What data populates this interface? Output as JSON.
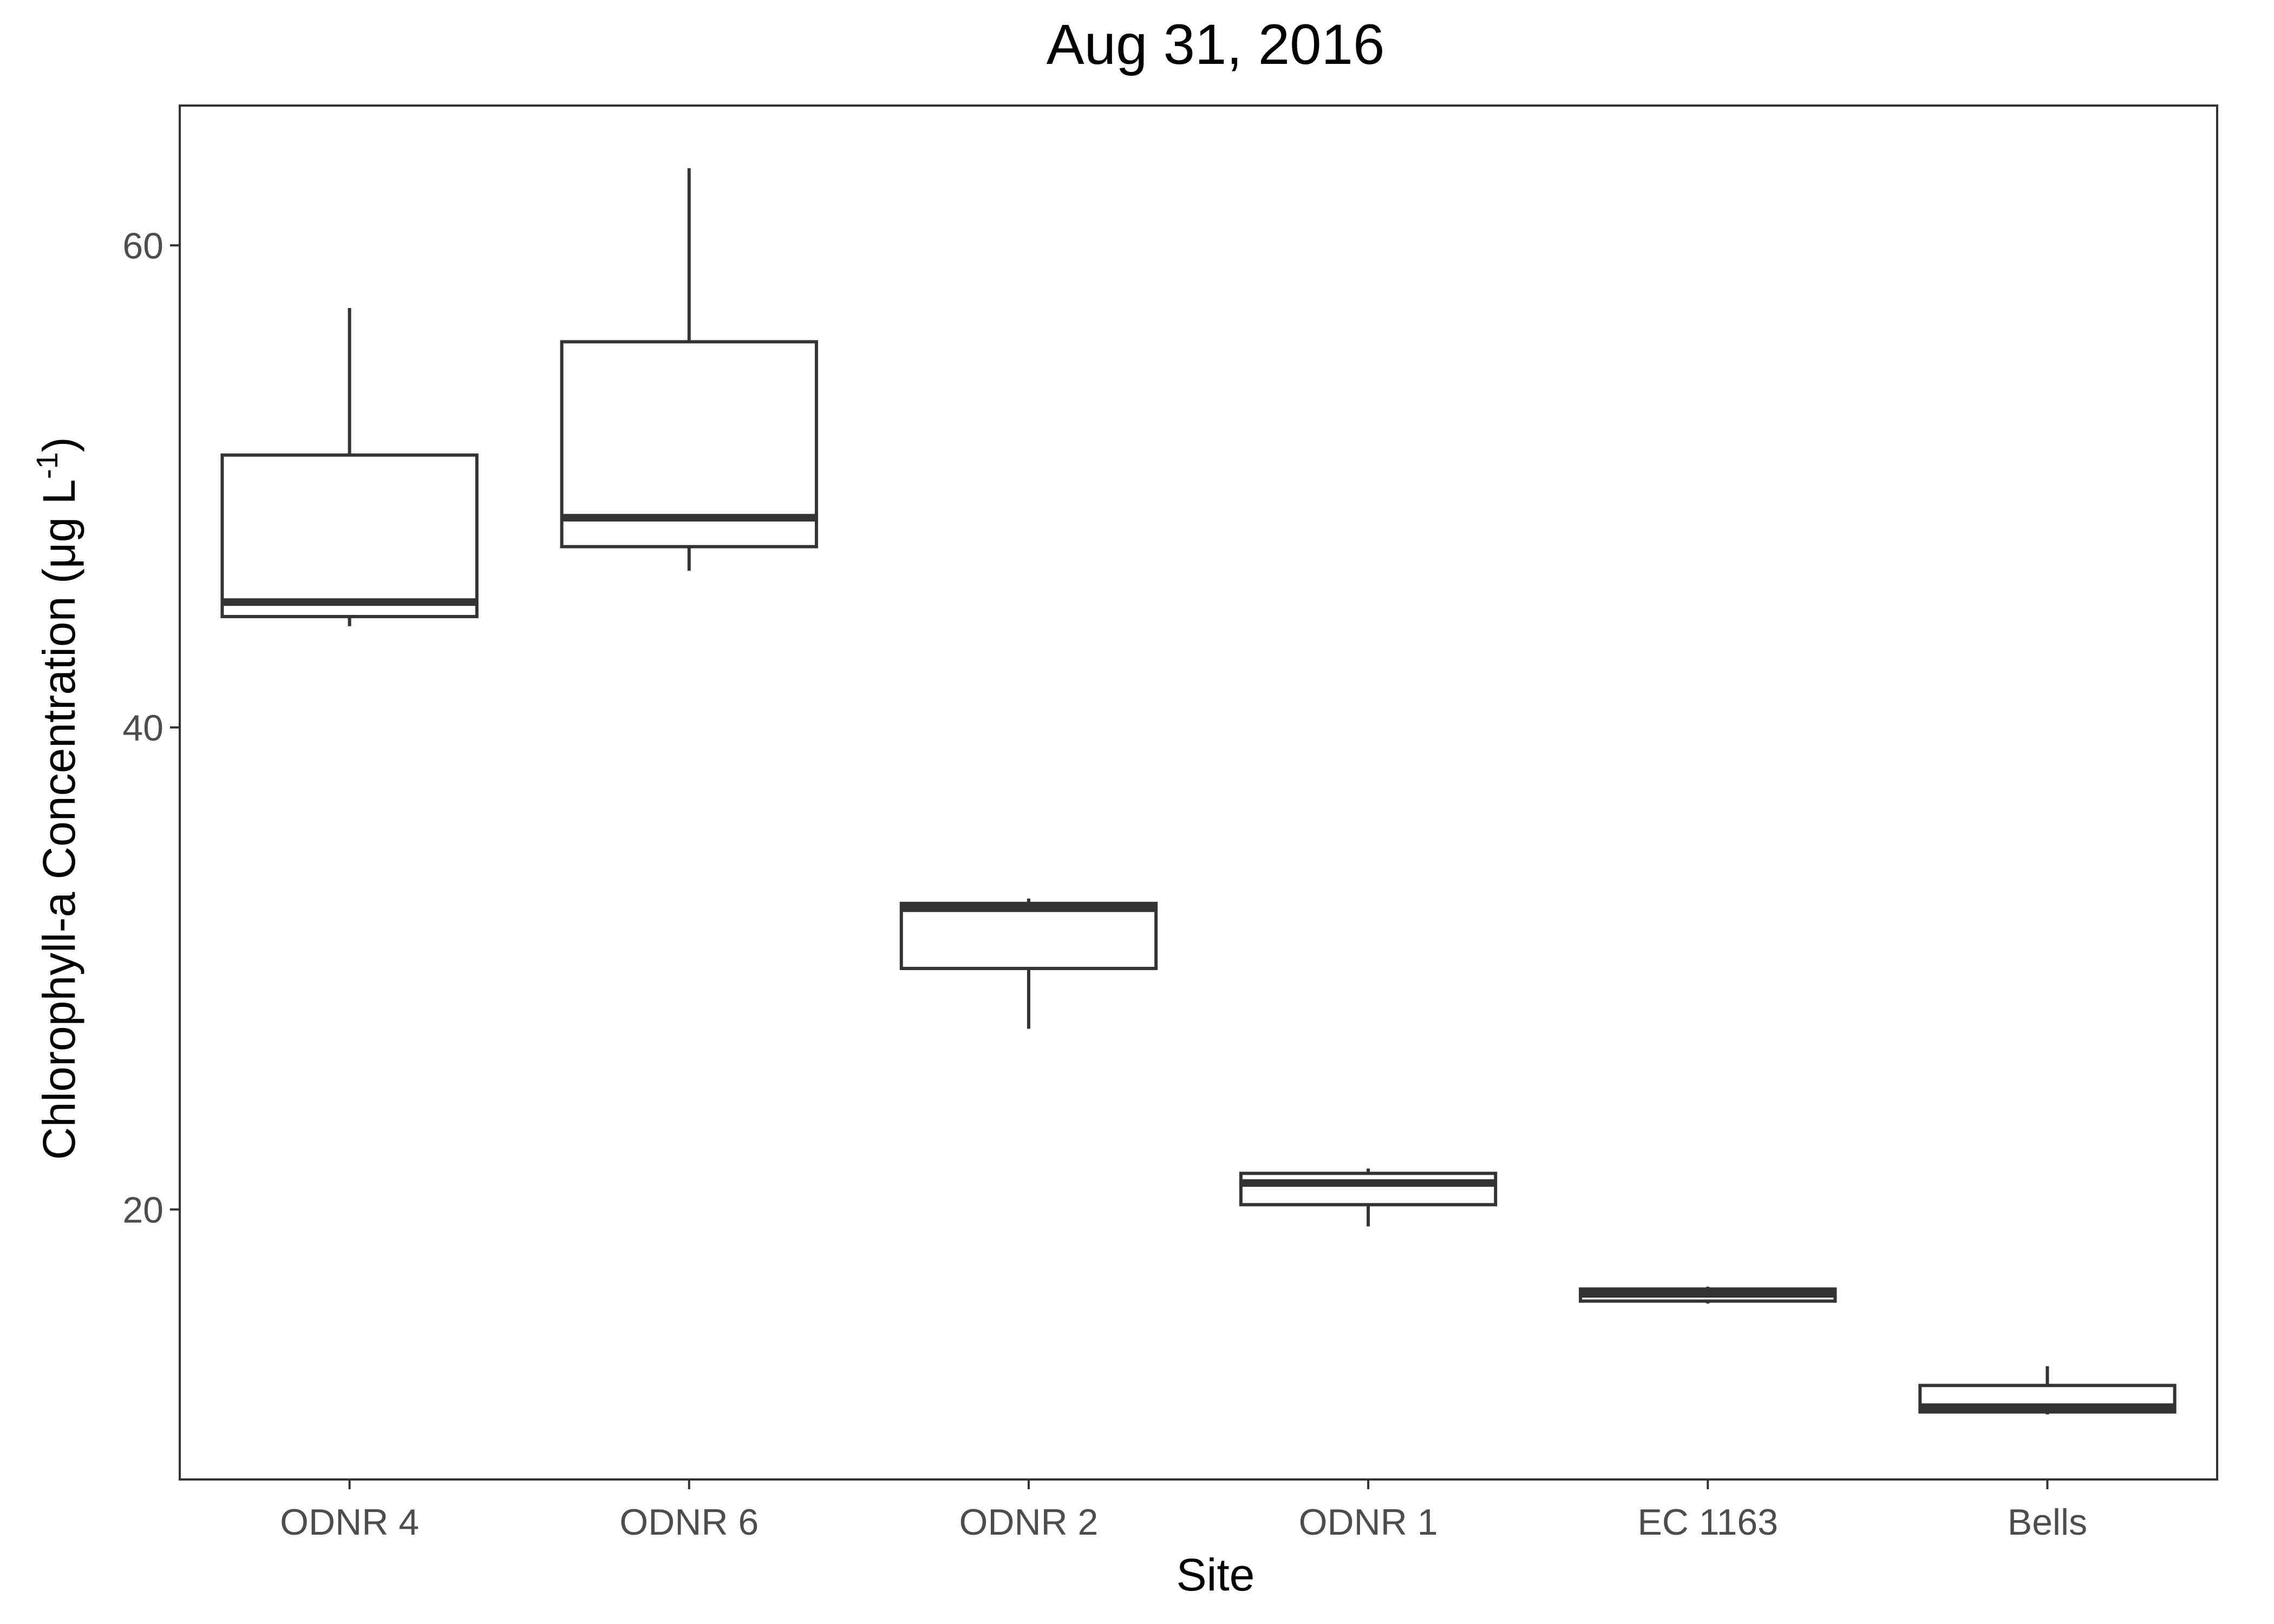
{
  "chart_data": {
    "type": "box",
    "title": "Aug 31, 2016",
    "xlabel": "Site",
    "ylabel_main": "Chlorophyll-a Concentration (μg L",
    "ylabel_sup": "-1",
    "ylabel_close": ")",
    "categories": [
      "ODNR 4",
      "ODNR 6",
      "ODNR 2",
      "ODNR 1",
      "EC 1163",
      "Bells"
    ],
    "y_ticks": [
      20,
      40,
      60
    ],
    "y_tick_labels": [
      "20",
      "40",
      "60"
    ],
    "ylim": [
      8.8,
      65.8
    ],
    "grid": false,
    "legend": "none",
    "boxes": [
      {
        "site": "ODNR 4",
        "whisker_low": 44.2,
        "q1": 44.6,
        "median": 45.2,
        "q3": 51.3,
        "whisker_high": 57.4
      },
      {
        "site": "ODNR 6",
        "whisker_low": 46.5,
        "q1": 47.5,
        "median": 48.7,
        "q3": 56.0,
        "whisker_high": 63.2
      },
      {
        "site": "ODNR 2",
        "whisker_low": 27.5,
        "q1": 30.0,
        "median": 32.5,
        "q3": 32.7,
        "whisker_high": 32.9
      },
      {
        "site": "ODNR 1",
        "whisker_low": 19.3,
        "q1": 20.2,
        "median": 21.1,
        "q3": 21.5,
        "whisker_high": 21.7
      },
      {
        "site": "EC 1163",
        "whisker_low": 16.1,
        "q1": 16.2,
        "median": 16.5,
        "q3": 16.7,
        "whisker_high": 16.8
      },
      {
        "site": "Bells",
        "whisker_low": 11.5,
        "q1": 11.6,
        "median": 11.8,
        "q3": 12.7,
        "whisker_high": 13.5
      }
    ],
    "colors": {
      "box_line": "#333333",
      "panel_border": "#333333",
      "box_fill": "#ffffff"
    }
  }
}
